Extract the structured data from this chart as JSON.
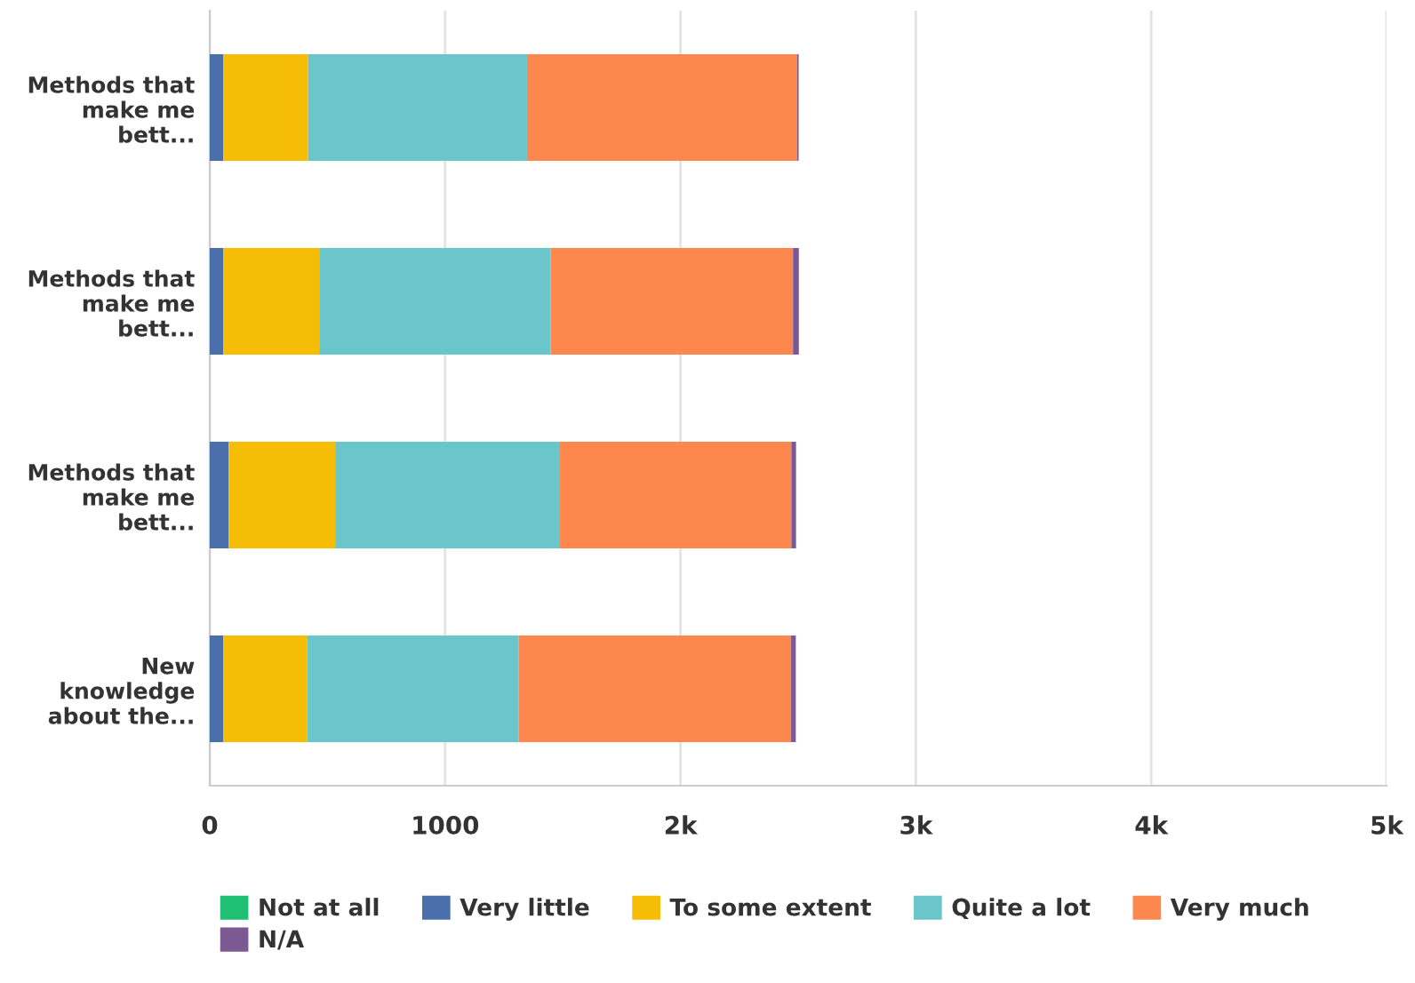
{
  "chart_data": {
    "type": "bar",
    "orientation": "horizontal",
    "stacked": true,
    "categories": [
      "Methods that\nmake me\nbett...",
      "Methods that\nmake me\nbett...",
      "Methods that\nmake me\nbett...",
      "New\nknowledge\nabout the..."
    ],
    "series": [
      {
        "name": "Not at all",
        "color": "#1fbf74",
        "values": [
          0,
          0,
          0,
          0
        ]
      },
      {
        "name": "Very little",
        "color": "#4a6faa",
        "values": [
          57,
          57,
          80,
          57
        ]
      },
      {
        "name": "To some extent",
        "color": "#f5bd06",
        "values": [
          361,
          408,
          453,
          356
        ]
      },
      {
        "name": "Quite a lot",
        "color": "#6bc6cb",
        "values": [
          930,
          983,
          955,
          900
        ]
      },
      {
        "name": "Very much",
        "color": "#fd874c",
        "values": [
          1147,
          1030,
          983,
          1157
        ]
      },
      {
        "name": "N/A",
        "color": "#7b5a93",
        "values": [
          7,
          25,
          20,
          20
        ]
      }
    ],
    "xlim": [
      0,
      5000
    ],
    "xticks": [
      0,
      1000,
      {
        "value": 2000,
        "label": "2k"
      },
      {
        "value": 3000,
        "label": "3k"
      },
      {
        "value": 4000,
        "label": "4k"
      },
      {
        "value": 5000,
        "label": "5k"
      }
    ],
    "grid": "x",
    "legend": "bottom"
  }
}
